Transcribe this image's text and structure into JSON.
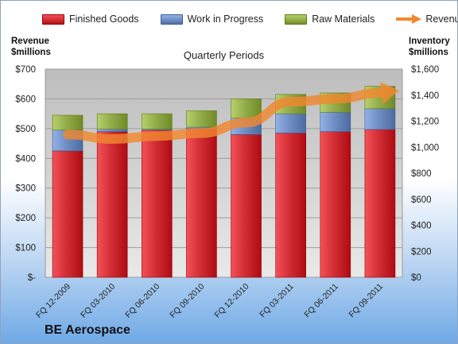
{
  "company": "BE Aerospace",
  "chart_data": {
    "type": "bar",
    "stacked": true,
    "subtitle": "Quarterly Periods",
    "categories": [
      "FQ 12-2009",
      "FQ 03-2010",
      "FQ 06-2010",
      "FQ 09-2010",
      "FQ 12-2010",
      "FQ 03-2011",
      "FQ 06-2011",
      "FQ 09-2011"
    ],
    "series": [
      {
        "name": "Finished Goods",
        "color": "#d12e35",
        "values": [
          425,
          490,
          495,
          500,
          480,
          485,
          490,
          497
        ]
      },
      {
        "name": "Work in Progress",
        "color": "#6f8fc4",
        "values": [
          70,
          8,
          3,
          5,
          55,
          65,
          65,
          70
        ]
      },
      {
        "name": "Raw Materials",
        "color": "#93ad4a",
        "values": [
          50,
          52,
          52,
          55,
          65,
          65,
          65,
          75
        ]
      }
    ],
    "line_series": {
      "name": "Revenue",
      "color": "#f2882f",
      "values": [
        480,
        465,
        475,
        485,
        520,
        590,
        600,
        620
      ]
    },
    "left_axis": {
      "title_line1": "Revenue",
      "title_line2": "$millions",
      "min": 0,
      "max": 700,
      "step": 100,
      "tick_labels": [
        "$-",
        "$100",
        "$200",
        "$300",
        "$400",
        "$500",
        "$600",
        "$700"
      ]
    },
    "right_axis": {
      "title_line1": "Inventory",
      "title_line2": "$millions",
      "min": 0,
      "max": 1600,
      "step": 200,
      "tick_labels": [
        "$0",
        "$200",
        "$400",
        "$600",
        "$800",
        "$1,000",
        "$1,200",
        "$1,400",
        "$1,600"
      ]
    },
    "legend_position": "top",
    "grid": true
  }
}
